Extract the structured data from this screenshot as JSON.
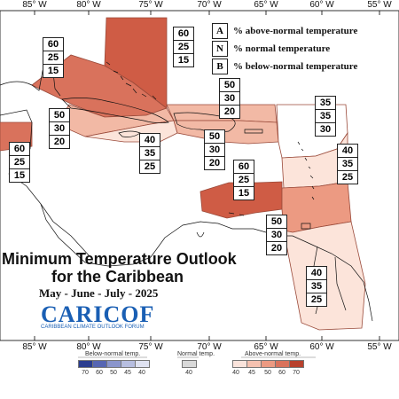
{
  "map": {
    "title_line1": "Minimum Temperature Outlook",
    "title_line2": "for the Caribbean",
    "period": "May - June - July - 2025",
    "logo_text": "CARICOF",
    "logo_subtext": "CARIBBEAN CLIMATE OUTLOOK FORUM",
    "longitude_labels": [
      "85° W",
      "80° W",
      "75° W",
      "70° W",
      "65° W",
      "60° W",
      "55° W"
    ]
  },
  "legend": {
    "items": [
      {
        "letter": "A",
        "text": "% above-normal temperature"
      },
      {
        "letter": "N",
        "text": "% normal temperature"
      },
      {
        "letter": "B",
        "text": "% below-normal temperature"
      }
    ]
  },
  "regions": [
    {
      "id": "florida-bahamas-north",
      "values": [
        "60",
        "25",
        "15"
      ],
      "fill": "#d9725c"
    },
    {
      "id": "bahamas-east",
      "values": [
        "60",
        "25",
        "15"
      ],
      "fill": "#cf5c45"
    },
    {
      "id": "cuba",
      "values": [
        "50",
        "30",
        "20"
      ],
      "fill": "#f2b9a5"
    },
    {
      "id": "turks-caicos",
      "values": [
        "50",
        "30",
        "20"
      ],
      "fill": "#f2b9a5"
    },
    {
      "id": "cayman",
      "values": [
        "40",
        "35",
        "25"
      ],
      "fill": "#fce4da"
    },
    {
      "id": "hispaniola",
      "values": [
        "50",
        "30",
        "20"
      ],
      "fill": "#f2b9a5"
    },
    {
      "id": "northern-lesser-antilles",
      "values": [
        "35",
        "35",
        "30"
      ],
      "fill": "#ffffff"
    },
    {
      "id": "eastern-caribbean",
      "values": [
        "40",
        "35",
        "25"
      ],
      "fill": "#fce4da"
    },
    {
      "id": "belize",
      "values": [
        "60",
        "25",
        "15"
      ],
      "fill": "#d9725c"
    },
    {
      "id": "puerto-rico-virgin-islands",
      "values": [
        "60",
        "25",
        "15"
      ],
      "fill": "#cf5c45"
    },
    {
      "id": "abc-trinidad",
      "values": [
        "50",
        "30",
        "20"
      ],
      "fill": "#ec9a82"
    },
    {
      "id": "guianas",
      "values": [
        "40",
        "35",
        "25"
      ],
      "fill": "#fce4da"
    }
  ],
  "colorbar": {
    "below_title": "Below-normal temp.",
    "normal_title": "Normal temp.",
    "above_title": "Above-normal temp.",
    "below_values": [
      "70",
      "60",
      "50",
      "45",
      "40"
    ],
    "normal_values": [
      "40"
    ],
    "above_values": [
      "40",
      "45",
      "50",
      "60",
      "70"
    ],
    "below_colors": [
      "#2b3d8f",
      "#5766b3",
      "#8a95cc",
      "#b7bee0",
      "#dfe2f1"
    ],
    "normal_colors": [
      "#d9d9d9"
    ],
    "above_colors": [
      "#fbe4dc",
      "#f5c1b0",
      "#ec9a82",
      "#d9725c",
      "#b8412d"
    ]
  }
}
